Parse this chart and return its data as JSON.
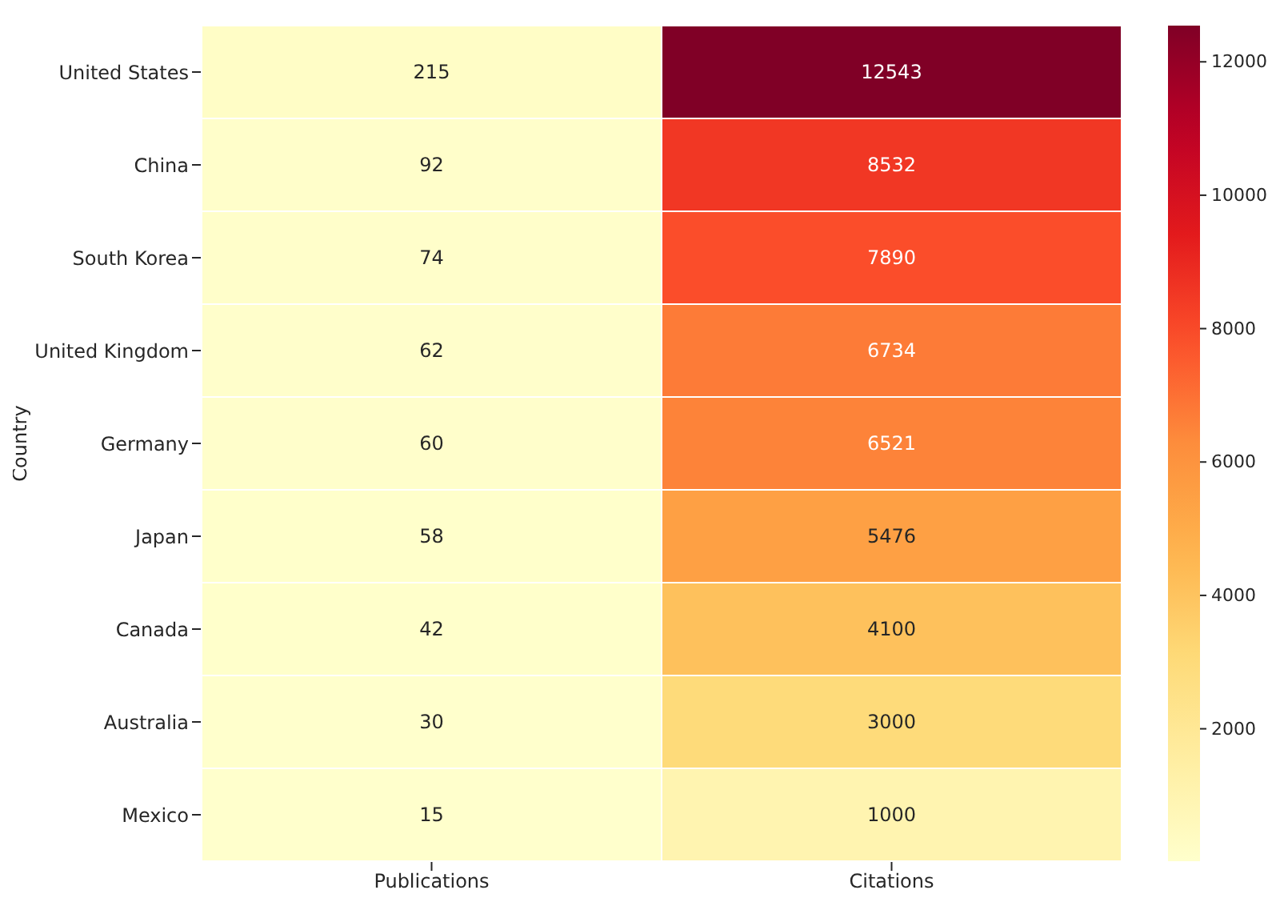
{
  "chart_data": {
    "type": "heatmap",
    "ylabel": "Country",
    "categories": [
      "Publications",
      "Citations"
    ],
    "y_categories": [
      "United States",
      "China",
      "South Korea",
      "United Kingdom",
      "Germany",
      "Japan",
      "Canada",
      "Australia",
      "Mexico"
    ],
    "cells": [
      [
        215,
        12543
      ],
      [
        92,
        8532
      ],
      [
        74,
        7890
      ],
      [
        62,
        6734
      ],
      [
        60,
        6521
      ],
      [
        58,
        5476
      ],
      [
        42,
        4100
      ],
      [
        30,
        3000
      ],
      [
        15,
        1000
      ]
    ],
    "data_labels": true,
    "clim": [
      15,
      12543
    ],
    "cticks": [
      2000,
      4000,
      6000,
      8000,
      10000,
      12000
    ]
  }
}
